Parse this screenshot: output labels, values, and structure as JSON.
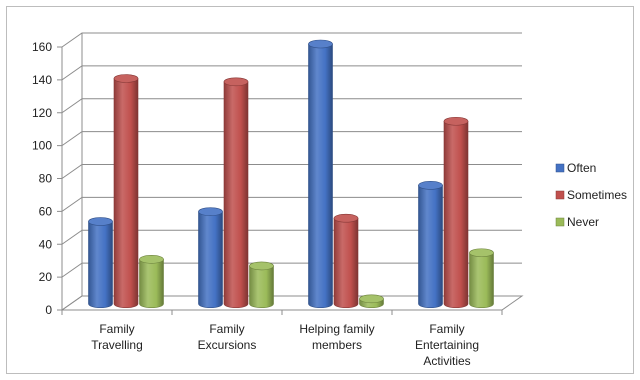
{
  "chart_data": {
    "type": "bar",
    "categories": [
      "Family Travelling",
      "Family Excursions",
      "Helping family members",
      "Family Entertaining Activities"
    ],
    "category_lines": [
      [
        "Family",
        "Travelling"
      ],
      [
        "Family",
        "Excursions"
      ],
      [
        "Helping family",
        "members"
      ],
      [
        "Family",
        "Entertaining",
        "Activities"
      ]
    ],
    "series": [
      {
        "name": "Often",
        "values": [
          50,
          56,
          158,
          72
        ],
        "color": "#4472c4"
      },
      {
        "name": "Sometimes",
        "values": [
          137,
          135,
          52,
          111
        ],
        "color": "#c0504d"
      },
      {
        "name": "Never",
        "values": [
          27,
          23,
          3,
          31
        ],
        "color": "#9bbb59"
      }
    ],
    "ylim": [
      0,
      160
    ],
    "yticks": [
      0,
      20,
      40,
      60,
      80,
      100,
      120,
      140,
      160
    ],
    "grid": true,
    "legend_position": "right",
    "style": "3d-cylinder",
    "title": "",
    "xlabel": "",
    "ylabel": ""
  }
}
